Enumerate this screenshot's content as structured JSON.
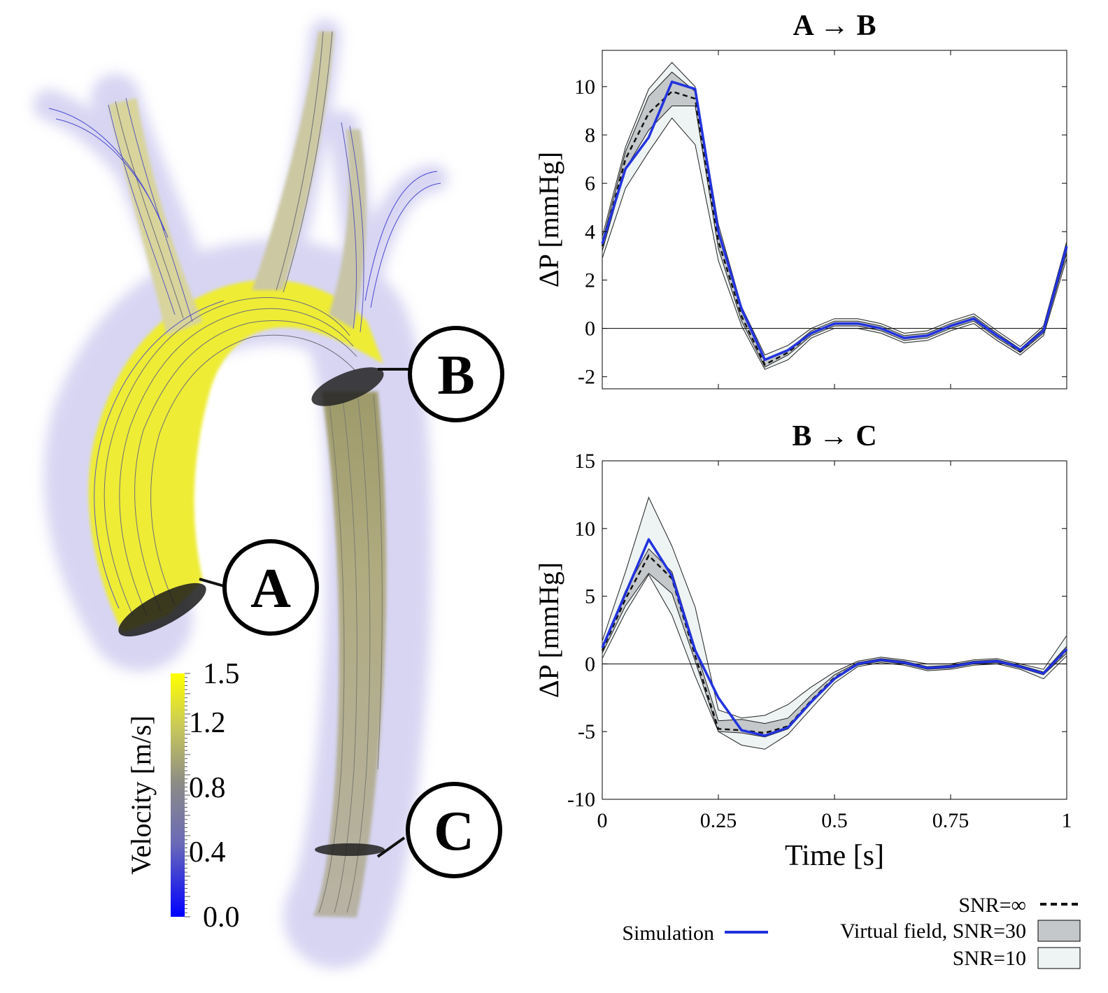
{
  "figure": {
    "markers": [
      {
        "label": "A"
      },
      {
        "label": "B"
      },
      {
        "label": "C"
      }
    ],
    "colorbar": {
      "title": "Velocity [m/s]",
      "ticks": [
        "0.0",
        "0.4",
        "0.8",
        "1.2",
        "1.5"
      ],
      "range": [
        0,
        1.5
      ],
      "colors": {
        "low": "#0000ff",
        "mid": "#8a8a8a",
        "high": "#ffff00"
      }
    }
  },
  "legend": {
    "snr_inf_label": "SNR=∞",
    "virtual_field_label": "Virtual field, SNR=30",
    "snr10_label": "SNR=10",
    "simulation_label": "Simulation"
  },
  "colors": {
    "simulation": "#2233dd",
    "snr_inf": "#111111",
    "band_snr30": "#c4c8ca",
    "band_snr10": "#eef3f3"
  },
  "chart_data": [
    {
      "type": "line",
      "title": "A → B",
      "xlabel": "",
      "ylabel": "ΔP [mmHg]",
      "xlim": [
        0,
        1
      ],
      "ylim": [
        -2.5,
        11.5
      ],
      "yticks": [
        -2,
        0,
        2,
        4,
        6,
        8,
        10
      ],
      "xticks": [
        0,
        0.25,
        0.5,
        0.75,
        1
      ],
      "x": [
        0,
        0.05,
        0.1,
        0.15,
        0.2,
        0.25,
        0.3,
        0.35,
        0.4,
        0.45,
        0.5,
        0.55,
        0.6,
        0.65,
        0.7,
        0.75,
        0.8,
        0.85,
        0.9,
        0.95,
        1.0
      ],
      "series": [
        {
          "name": "Simulation",
          "values": [
            3.5,
            6.6,
            7.9,
            10.2,
            9.9,
            4.0,
            0.8,
            -1.3,
            -0.9,
            -0.2,
            0.2,
            0.2,
            0.0,
            -0.4,
            -0.3,
            0.1,
            0.4,
            -0.3,
            -0.9,
            -0.1,
            3.4
          ]
        },
        {
          "name": "SNR=∞",
          "values": [
            3.4,
            7.0,
            8.9,
            9.8,
            9.5,
            3.6,
            0.5,
            -1.5,
            -1.0,
            -0.2,
            0.2,
            0.2,
            0.0,
            -0.4,
            -0.3,
            0.1,
            0.4,
            -0.3,
            -0.95,
            -0.1,
            3.3
          ]
        },
        {
          "name": "Virtual field, SNR=30",
          "lower": [
            3.2,
            6.6,
            8.2,
            9.2,
            9.2,
            3.3,
            0.3,
            -1.6,
            -1.1,
            -0.3,
            0.1,
            0.1,
            -0.1,
            -0.5,
            -0.4,
            0.0,
            0.3,
            -0.4,
            -1.0,
            -0.2,
            3.1
          ],
          "upper": [
            3.6,
            7.3,
            9.6,
            10.6,
            9.8,
            3.9,
            0.7,
            -1.3,
            -0.9,
            -0.1,
            0.3,
            0.3,
            0.1,
            -0.3,
            -0.2,
            0.2,
            0.5,
            -0.2,
            -0.85,
            0.0,
            3.5
          ]
        },
        {
          "name": "SNR=10",
          "lower": [
            2.9,
            5.8,
            7.3,
            8.7,
            7.6,
            2.8,
            0.1,
            -1.7,
            -1.3,
            -0.4,
            0.0,
            0.0,
            -0.2,
            -0.6,
            -0.5,
            -0.1,
            0.2,
            -0.5,
            -1.1,
            -0.3,
            2.9
          ],
          "upper": [
            3.8,
            7.5,
            9.9,
            11.0,
            10.0,
            4.3,
            0.9,
            -1.1,
            -0.7,
            0.0,
            0.4,
            0.4,
            0.2,
            -0.2,
            -0.1,
            0.3,
            0.6,
            -0.1,
            -0.75,
            0.1,
            3.6
          ]
        }
      ],
      "grid": false,
      "zero_line": true
    },
    {
      "type": "line",
      "title": "B → C",
      "xlabel": "Time [s]",
      "ylabel": "ΔP [mmHg]",
      "xlim": [
        0,
        1
      ],
      "ylim": [
        -10,
        15
      ],
      "yticks": [
        -10,
        -5,
        0,
        5,
        10,
        15
      ],
      "xticks": [
        0,
        0.25,
        0.5,
        0.75,
        1
      ],
      "xticklabels": [
        "0",
        "0.25",
        "0.5",
        "0.75",
        "1"
      ],
      "x": [
        0,
        0.05,
        0.1,
        0.15,
        0.2,
        0.25,
        0.3,
        0.35,
        0.4,
        0.45,
        0.5,
        0.55,
        0.6,
        0.65,
        0.7,
        0.75,
        0.8,
        0.85,
        0.9,
        0.95,
        1.0
      ],
      "series": [
        {
          "name": "Simulation",
          "values": [
            1.2,
            5.2,
            9.2,
            6.5,
            1.0,
            -2.5,
            -4.9,
            -5.3,
            -4.7,
            -2.8,
            -1.1,
            0.0,
            0.3,
            0.1,
            -0.3,
            -0.2,
            0.1,
            0.2,
            -0.2,
            -0.7,
            1.1
          ]
        },
        {
          "name": "SNR=∞",
          "values": [
            1.0,
            4.8,
            8.0,
            6.3,
            0.6,
            -4.8,
            -4.9,
            -5.1,
            -4.6,
            -2.7,
            -1.0,
            0.0,
            0.3,
            0.1,
            -0.3,
            -0.2,
            0.1,
            0.2,
            -0.2,
            -0.7,
            1.0
          ]
        },
        {
          "name": "Virtual field, SNR=30",
          "lower": [
            0.8,
            4.3,
            6.7,
            5.2,
            0.2,
            -5.0,
            -5.1,
            -5.4,
            -4.8,
            -2.9,
            -1.1,
            -0.1,
            0.2,
            0.0,
            -0.4,
            -0.3,
            0.0,
            0.1,
            -0.3,
            -0.8,
            0.8
          ],
          "upper": [
            1.2,
            5.4,
            8.5,
            6.8,
            1.2,
            -4.2,
            -4.1,
            -4.4,
            -4.0,
            -2.3,
            -0.8,
            0.1,
            0.4,
            0.2,
            -0.2,
            -0.1,
            0.2,
            0.3,
            -0.1,
            -0.6,
            1.3
          ]
        },
        {
          "name": "SNR=10",
          "lower": [
            0.4,
            3.8,
            6.6,
            3.6,
            -0.9,
            -5.0,
            -6.0,
            -6.3,
            -5.2,
            -3.3,
            -1.4,
            -0.2,
            0.1,
            -0.1,
            -0.5,
            -0.4,
            -0.1,
            0.0,
            -0.4,
            -1.1,
            0.6
          ],
          "upper": [
            1.7,
            6.8,
            12.3,
            8.7,
            4.2,
            -3.4,
            -4.0,
            -3.8,
            -3.0,
            -1.7,
            -0.6,
            0.2,
            0.5,
            0.3,
            0.0,
            0.0,
            0.3,
            0.4,
            0.0,
            -0.4,
            2.1
          ]
        }
      ],
      "grid": false,
      "zero_line": true
    }
  ]
}
